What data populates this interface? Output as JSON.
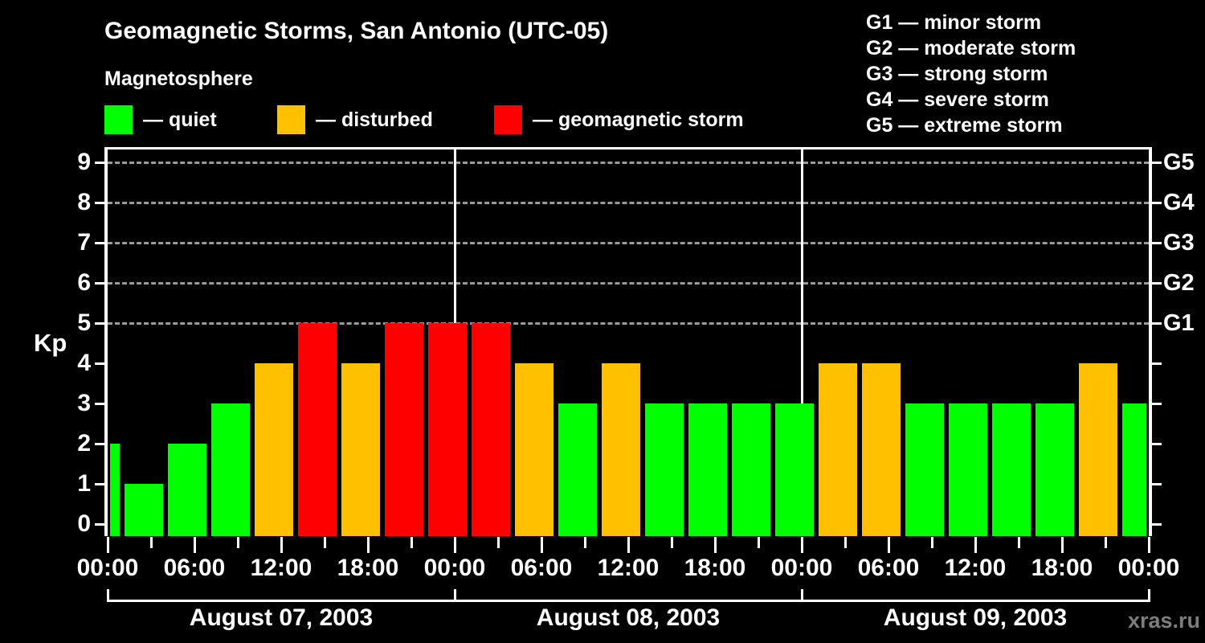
{
  "title": "Geomagnetic Storms, San Antonio (UTC-05)",
  "subtitle": "Magnetosphere",
  "legend": {
    "items": [
      {
        "key": "quiet",
        "label": "— quiet",
        "color": "#00ff00"
      },
      {
        "key": "disturbed",
        "label": "— disturbed",
        "color": "#ffc000"
      },
      {
        "key": "storm",
        "label": "— geomagnetic storm",
        "color": "#ff0000"
      }
    ]
  },
  "g_legend": {
    "items": [
      {
        "label": "G1 — minor storm"
      },
      {
        "label": "G2 — moderate storm"
      },
      {
        "label": "G3 — strong storm"
      },
      {
        "label": "G4 — severe storm"
      },
      {
        "label": "G5 — extreme storm"
      }
    ]
  },
  "watermark": "xras.ru",
  "chart_data": {
    "type": "bar",
    "title": "Geomagnetic Storms, San Antonio (UTC-05)",
    "ylabel": "Kp",
    "ylim": [
      0,
      9
    ],
    "yticks": [
      0,
      1,
      2,
      3,
      4,
      5,
      6,
      7,
      8,
      9
    ],
    "gridlines_dashed_at": [
      5,
      6,
      7,
      8,
      9
    ],
    "right_axis_labels": [
      {
        "value": 5,
        "label": "G1"
      },
      {
        "value": 6,
        "label": "G2"
      },
      {
        "value": 7,
        "label": "G3"
      },
      {
        "value": 8,
        "label": "G4"
      },
      {
        "value": 9,
        "label": "G5"
      }
    ],
    "x_hours_total": 72,
    "xtick_minor_every_hours": 3,
    "xtick_major_every_hours": 6,
    "xtick_labels": [
      "00:00",
      "06:00",
      "12:00",
      "18:00",
      "00:00",
      "06:00",
      "12:00",
      "18:00",
      "00:00",
      "06:00",
      "12:00",
      "18:00",
      "00:00"
    ],
    "day_boundaries_hours": [
      24,
      48
    ],
    "days": [
      {
        "label": "August 07, 2003",
        "start_hour": 0,
        "end_hour": 24
      },
      {
        "label": "August 08, 2003",
        "start_hour": 24,
        "end_hour": 48
      },
      {
        "label": "August 09, 2003",
        "start_hour": 48,
        "end_hour": 72
      }
    ],
    "colors": {
      "quiet": "#00ff00",
      "disturbed": "#ffc000",
      "storm": "#ff0000"
    },
    "bars": [
      {
        "start_hour": 0,
        "end_hour": 1,
        "kp": 2,
        "level": "quiet"
      },
      {
        "start_hour": 1,
        "end_hour": 4,
        "kp": 1,
        "level": "quiet"
      },
      {
        "start_hour": 4,
        "end_hour": 7,
        "kp": 2,
        "level": "quiet"
      },
      {
        "start_hour": 7,
        "end_hour": 10,
        "kp": 3,
        "level": "quiet"
      },
      {
        "start_hour": 10,
        "end_hour": 13,
        "kp": 4,
        "level": "disturbed"
      },
      {
        "start_hour": 13,
        "end_hour": 16,
        "kp": 5,
        "level": "storm"
      },
      {
        "start_hour": 16,
        "end_hour": 19,
        "kp": 4,
        "level": "disturbed"
      },
      {
        "start_hour": 19,
        "end_hour": 22,
        "kp": 5,
        "level": "storm"
      },
      {
        "start_hour": 22,
        "end_hour": 25,
        "kp": 5,
        "level": "storm"
      },
      {
        "start_hour": 25,
        "end_hour": 28,
        "kp": 5,
        "level": "storm"
      },
      {
        "start_hour": 28,
        "end_hour": 31,
        "kp": 4,
        "level": "disturbed"
      },
      {
        "start_hour": 31,
        "end_hour": 34,
        "kp": 3,
        "level": "quiet"
      },
      {
        "start_hour": 34,
        "end_hour": 37,
        "kp": 4,
        "level": "disturbed"
      },
      {
        "start_hour": 37,
        "end_hour": 40,
        "kp": 3,
        "level": "quiet"
      },
      {
        "start_hour": 40,
        "end_hour": 43,
        "kp": 3,
        "level": "quiet"
      },
      {
        "start_hour": 43,
        "end_hour": 46,
        "kp": 3,
        "level": "quiet"
      },
      {
        "start_hour": 46,
        "end_hour": 49,
        "kp": 3,
        "level": "quiet"
      },
      {
        "start_hour": 49,
        "end_hour": 52,
        "kp": 4,
        "level": "disturbed"
      },
      {
        "start_hour": 52,
        "end_hour": 55,
        "kp": 4,
        "level": "disturbed"
      },
      {
        "start_hour": 55,
        "end_hour": 58,
        "kp": 3,
        "level": "quiet"
      },
      {
        "start_hour": 58,
        "end_hour": 61,
        "kp": 3,
        "level": "quiet"
      },
      {
        "start_hour": 61,
        "end_hour": 64,
        "kp": 3,
        "level": "quiet"
      },
      {
        "start_hour": 64,
        "end_hour": 67,
        "kp": 3,
        "level": "quiet"
      },
      {
        "start_hour": 67,
        "end_hour": 70,
        "kp": 4,
        "level": "disturbed"
      },
      {
        "start_hour": 70,
        "end_hour": 72,
        "kp": 3,
        "level": "quiet"
      }
    ]
  }
}
